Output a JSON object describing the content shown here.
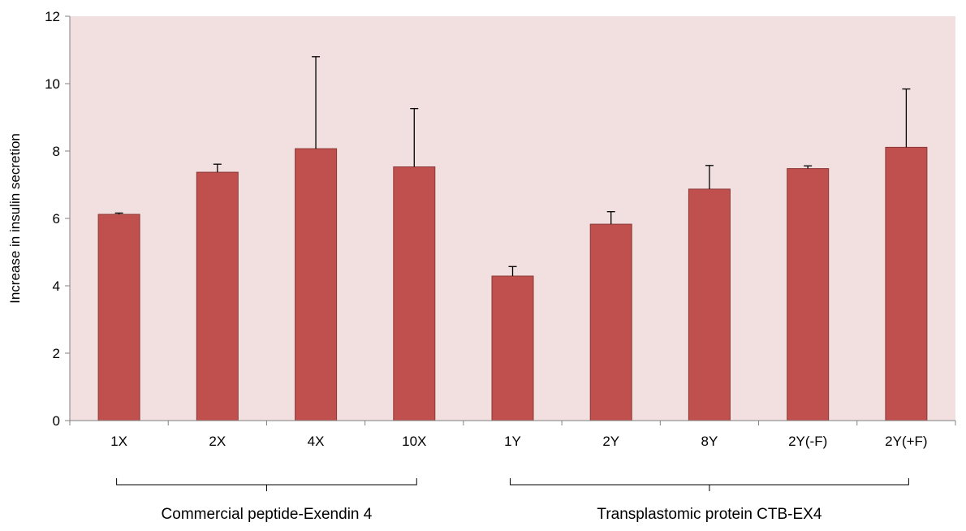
{
  "chart_data": {
    "type": "bar",
    "title": "",
    "xlabel": "",
    "ylabel": "Increase in insulin secretion",
    "ylim": [
      0,
      12
    ],
    "yticks": [
      0,
      2,
      4,
      6,
      8,
      10,
      12
    ],
    "grid": false,
    "legend": "none",
    "categories": [
      "1X",
      "2X",
      "4X",
      "10X",
      "1Y",
      "2Y",
      "8Y",
      "2Y(-F)",
      "2Y(+F)"
    ],
    "values": [
      6.12,
      7.37,
      8.07,
      7.53,
      4.29,
      5.83,
      6.87,
      7.48,
      8.11
    ],
    "errors": [
      0.04,
      0.24,
      2.73,
      1.73,
      0.28,
      0.37,
      0.7,
      0.08,
      1.73
    ],
    "groups": [
      {
        "label": "Commercial peptide-Exendin 4",
        "categories": [
          "1X",
          "2X",
          "4X",
          "10X"
        ]
      },
      {
        "label": "Transplastomic protein CTB-EX4",
        "categories": [
          "1Y",
          "2Y",
          "8Y",
          "2Y(-F)",
          "2Y(+F)"
        ]
      }
    ],
    "colors": {
      "bar_fill": "#c0504d",
      "bar_stroke": "#8c3836",
      "plot_background": "#f2e0e0",
      "axis": "#808080",
      "error_bar": "#000000"
    }
  }
}
